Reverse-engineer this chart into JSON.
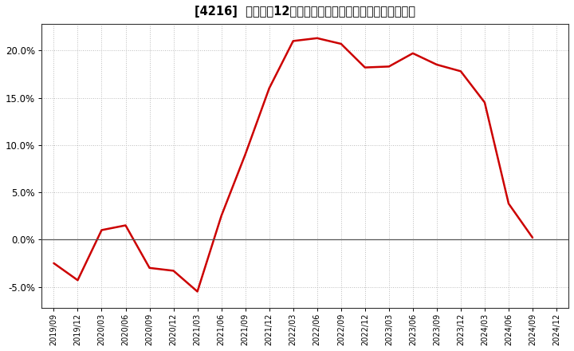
{
  "title": "[4216]  売上高の12か月移動合計の対前年同期増減率の推移",
  "line_color": "#cc0000",
  "background_color": "#ffffff",
  "plot_bg_color": "#ffffff",
  "grid_color": "#aaaaaa",
  "ylim": [
    -0.072,
    0.228
  ],
  "yticks": [
    -0.05,
    0.0,
    0.05,
    0.1,
    0.15,
    0.2
  ],
  "dates": [
    "2019/09",
    "2019/12",
    "2020/03",
    "2020/06",
    "2020/09",
    "2020/12",
    "2021/03",
    "2021/06",
    "2021/09",
    "2021/12",
    "2022/03",
    "2022/06",
    "2022/09",
    "2022/12",
    "2023/03",
    "2023/06",
    "2023/09",
    "2023/12",
    "2024/03",
    "2024/06",
    "2024/09",
    "2024/12"
  ],
  "values": [
    -0.025,
    -0.043,
    0.01,
    0.015,
    -0.03,
    -0.033,
    -0.055,
    0.025,
    0.09,
    0.16,
    0.21,
    0.213,
    0.207,
    0.182,
    0.183,
    0.197,
    0.185,
    0.178,
    0.145,
    0.038,
    0.002,
    null
  ]
}
